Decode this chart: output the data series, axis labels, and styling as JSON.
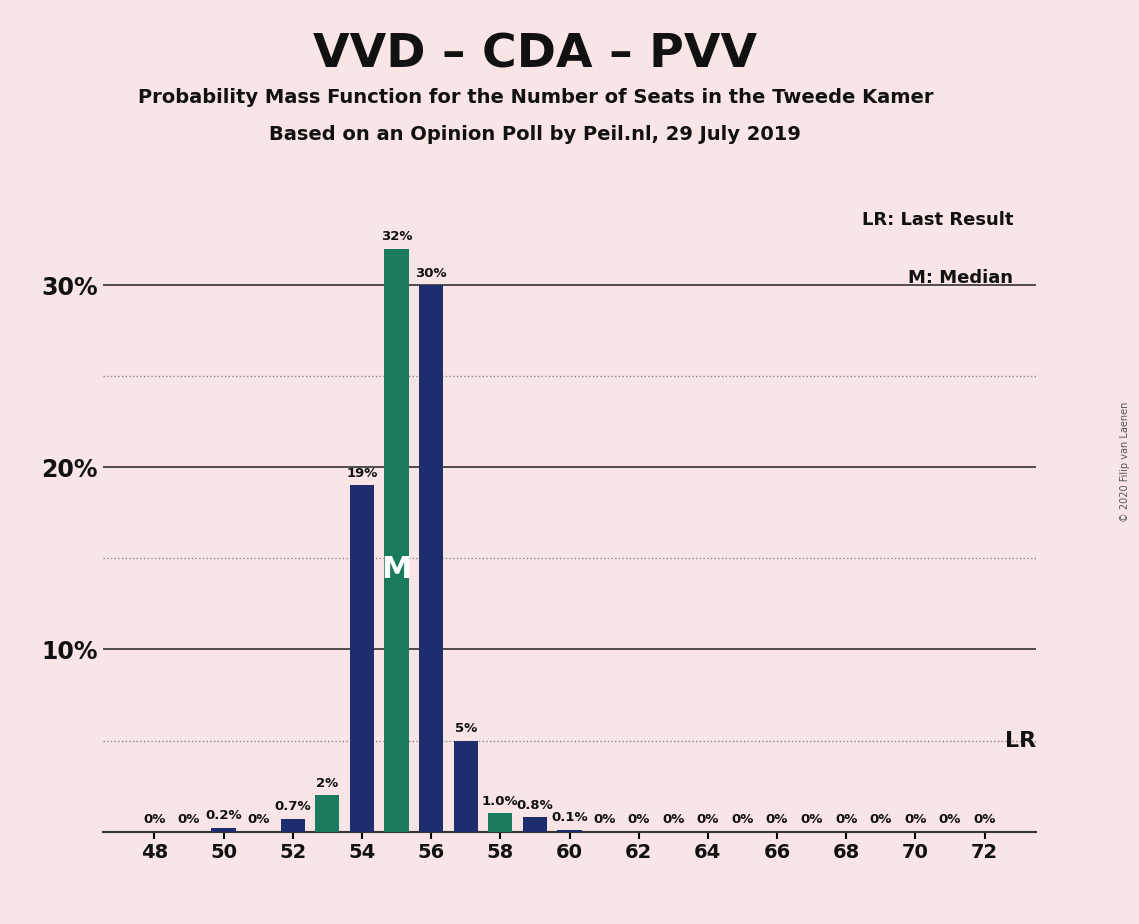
{
  "title": "VVD – CDA – PVV",
  "subtitle1": "Probability Mass Function for the Number of Seats in the Tweede Kamer",
  "subtitle2": "Based on an Opinion Poll by Peil.nl, 29 July 2019",
  "copyright": "© 2020 Filip van Laenen",
  "legend_lr": "LR: Last Result",
  "legend_m": "M: Median",
  "background_color": "#f9e4e6",
  "bar_color_navy": "#1e2d6e",
  "bar_color_teal": "#1a7a5e",
  "seats": [
    48,
    49,
    50,
    51,
    52,
    53,
    54,
    55,
    56,
    57,
    58,
    59,
    60,
    61,
    62,
    63,
    64,
    65,
    66,
    67,
    68,
    69,
    70,
    71,
    72
  ],
  "probabilities": [
    0.0,
    0.0,
    0.002,
    0.0,
    0.007,
    0.02,
    0.19,
    0.32,
    0.3,
    0.05,
    0.01,
    0.008,
    0.001,
    0.0,
    0.0,
    0.0,
    0.0,
    0.0,
    0.0,
    0.0,
    0.0,
    0.0,
    0.0,
    0.0,
    0.0
  ],
  "labels": [
    "0%",
    "0%",
    "0.2%",
    "0%",
    "0.7%",
    "2%",
    "19%",
    "32%",
    "30%",
    "5%",
    "1.0%",
    "0.8%",
    "0.1%",
    "0%",
    "0%",
    "0%",
    "0%",
    "0%",
    "0%",
    "0%",
    "0%",
    "0%",
    "0%",
    "0%",
    "0%"
  ],
  "teal_seats": [
    53,
    55,
    58
  ],
  "median_seat": 55,
  "lr_prob": 0.05,
  "ylim": [
    0,
    0.355
  ],
  "yticks": [
    0.0,
    0.05,
    0.1,
    0.15,
    0.2,
    0.25,
    0.3
  ],
  "xtick_seats": [
    48,
    50,
    52,
    54,
    56,
    58,
    60,
    62,
    64,
    66,
    68,
    70,
    72
  ],
  "bar_width": 0.7
}
